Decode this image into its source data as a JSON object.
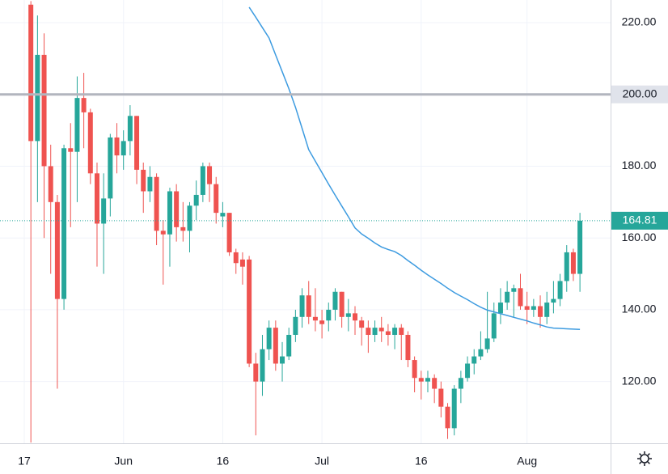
{
  "chart_data": {
    "type": "candlestick",
    "categories": [
      "17",
      null,
      null,
      null,
      null,
      null,
      null,
      null,
      null,
      null,
      null,
      null,
      null,
      null,
      null,
      "Jun",
      null,
      null,
      null,
      null,
      null,
      null,
      null,
      null,
      null,
      null,
      null,
      null,
      null,
      null,
      "16",
      null,
      null,
      null,
      null,
      null,
      null,
      null,
      null,
      null,
      null,
      null,
      null,
      null,
      null,
      "Jul",
      null,
      null,
      null,
      null,
      null,
      null,
      null,
      null,
      null,
      null,
      null,
      null,
      null,
      null,
      "16",
      null,
      null,
      null,
      null,
      null,
      null,
      null,
      null,
      null,
      null,
      null,
      null,
      null,
      null,
      null,
      "Aug",
      null,
      null,
      null,
      null,
      null,
      null,
      null,
      null
    ],
    "open": [
      null,
      225,
      187,
      211,
      180,
      170,
      143,
      185,
      184,
      199,
      195,
      178,
      164,
      171,
      188,
      183,
      187,
      194,
      179,
      173,
      177,
      162,
      161,
      173,
      163,
      162,
      169,
      172,
      180,
      175,
      166,
      167,
      156,
      154,
      154,
      125,
      120,
      129,
      135,
      125,
      127,
      133,
      138,
      144,
      138,
      137,
      137,
      140,
      145,
      138,
      139,
      137,
      135,
      133,
      135,
      134,
      133,
      135,
      133,
      126,
      121,
      120,
      121,
      118,
      113,
      107,
      118,
      121,
      125,
      127,
      129,
      132,
      139,
      142,
      145,
      146,
      141,
      140,
      141,
      138,
      142,
      143,
      148,
      156,
      150
    ],
    "high": [
      null,
      226,
      222,
      217,
      186,
      172,
      186,
      192,
      205,
      206,
      196,
      181,
      178,
      189,
      192,
      190,
      197,
      194,
      181,
      180,
      178,
      165,
      174,
      175,
      170,
      170,
      176,
      181,
      181,
      177,
      170,
      167,
      157,
      156,
      155,
      128,
      133,
      137,
      137,
      131,
      135,
      140,
      146,
      148,
      146,
      140,
      142,
      146,
      145,
      143,
      141,
      138,
      137,
      137,
      138,
      136,
      136,
      136,
      134,
      127,
      123,
      123,
      122,
      120,
      114,
      119,
      123,
      127,
      129,
      134,
      145,
      142,
      146,
      148,
      147,
      150,
      145,
      143,
      144,
      145,
      148,
      150,
      158,
      157,
      167
    ],
    "low": [
      null,
      103,
      170,
      160,
      150,
      118,
      140,
      163,
      170,
      185,
      175,
      152,
      150,
      166,
      178,
      179,
      183,
      175,
      167,
      170,
      158,
      147,
      152,
      159,
      159,
      156,
      165,
      170,
      170,
      164,
      163,
      155,
      150,
      147,
      124,
      105,
      116,
      126,
      123,
      120,
      126,
      131,
      135,
      136,
      134,
      132,
      134,
      137,
      135,
      134,
      133,
      130,
      128,
      131,
      131,
      130,
      129,
      126,
      124,
      117,
      115,
      117,
      114,
      110,
      104,
      105,
      114,
      120,
      122,
      126,
      128,
      131,
      136,
      140,
      138,
      140,
      136,
      138,
      135,
      136,
      139,
      141,
      145,
      148,
      145
    ],
    "close": [
      null,
      187,
      211,
      180,
      170,
      143,
      185,
      184,
      199,
      195,
      178,
      164,
      171,
      188,
      183,
      187,
      194,
      179,
      173,
      177,
      162,
      161,
      173,
      163,
      162,
      169,
      172,
      180,
      175,
      167,
      167,
      156,
      153,
      152,
      125,
      120,
      129,
      135,
      125,
      127,
      133,
      138,
      144,
      138,
      137,
      136,
      140,
      145,
      138,
      139,
      137,
      135,
      133,
      135,
      134,
      133,
      135,
      133,
      126,
      121,
      120,
      121,
      118,
      113,
      107,
      118,
      121,
      125,
      127,
      129,
      132,
      139,
      142,
      145,
      146,
      141,
      140,
      141,
      138,
      142,
      143,
      148,
      156,
      150,
      164.81
    ],
    "up_color": "#26a69a",
    "down_color": "#ef5350",
    "ma": {
      "color": "#3d9be0",
      "values": [
        null,
        null,
        null,
        null,
        null,
        null,
        null,
        null,
        null,
        null,
        null,
        null,
        null,
        null,
        null,
        null,
        null,
        null,
        null,
        null,
        null,
        null,
        null,
        null,
        null,
        null,
        null,
        null,
        null,
        null,
        null,
        null,
        null,
        null,
        224.3,
        221.5,
        218.6,
        215.7,
        211,
        206.3,
        201.6,
        196.4,
        190.5,
        184.6,
        181.4,
        178.2,
        175,
        171.9,
        168.9,
        165.9,
        162.8,
        161.1,
        159.9,
        158.6,
        157.5,
        156.8,
        156.2,
        155.1,
        153.7,
        152.4,
        151,
        149.7,
        148.5,
        147.3,
        146,
        144.8,
        143.8,
        142.8,
        141.7,
        140.7,
        139.9,
        139.4,
        138.9,
        138.4,
        137.9,
        137.4,
        136.9,
        136.3,
        135.8,
        135.2,
        134.9,
        134.8,
        134.7,
        134.6,
        134.5
      ]
    },
    "ylim": [
      102.8,
      226.3
    ],
    "yticks": [
      {
        "value": 120,
        "label": "120.00"
      },
      {
        "value": 140,
        "label": "140.00"
      },
      {
        "value": 160,
        "label": "160.00"
      },
      {
        "value": 180,
        "label": "180.00"
      },
      {
        "value": 220,
        "label": "220.00"
      }
    ],
    "grid": true,
    "hline": {
      "value": 200,
      "label": "200.00",
      "color": "#b2b5be"
    },
    "last_price": {
      "value": 164.81,
      "label": "164.81",
      "color": "#26a69a"
    }
  }
}
